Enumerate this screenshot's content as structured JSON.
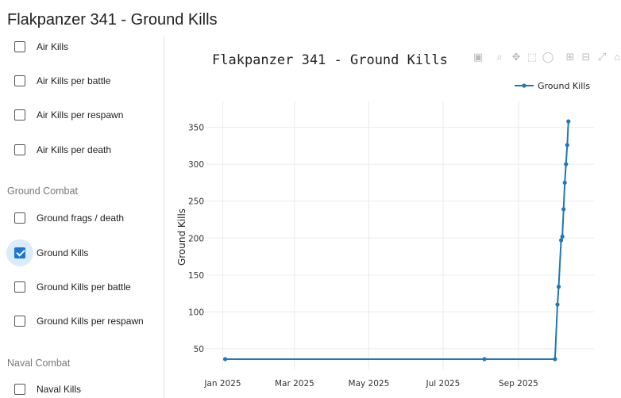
{
  "page": {
    "title": "Flakpanzer 341 - Ground Kills"
  },
  "sidebar": {
    "air_items": [
      {
        "label": "Air Kills",
        "checked": false
      },
      {
        "label": "Air Kills per battle",
        "checked": false
      },
      {
        "label": "Air Kills per respawn",
        "checked": false
      },
      {
        "label": "Air Kills per death",
        "checked": false
      }
    ],
    "ground_section": "Ground Combat",
    "ground_items": [
      {
        "label": "Ground frags / death",
        "checked": false
      },
      {
        "label": "Ground Kills",
        "checked": true
      },
      {
        "label": "Ground Kills per battle",
        "checked": false
      },
      {
        "label": "Ground Kills per respawn",
        "checked": false
      }
    ],
    "naval_section": "Naval Combat",
    "naval_items": [
      {
        "label": "Naval Kills",
        "checked": false
      }
    ]
  },
  "modebar": {
    "icons": [
      "camera-icon",
      "zoom-icon",
      "pan-icon",
      "box-select-icon",
      "lasso-select-icon",
      "zoom-in-icon",
      "zoom-out-icon",
      "autoscale-icon",
      "home-icon"
    ]
  },
  "chart_data": {
    "type": "line",
    "title": "Flakpanzer 341 - Ground Kills",
    "xlabel": "",
    "ylabel": "Ground Kills",
    "x_ticks": [
      "Jan 2025",
      "Mar 2025",
      "May 2025",
      "Jul 2025",
      "Sep 2025"
    ],
    "y_ticks": [
      50,
      100,
      150,
      200,
      250,
      300,
      350
    ],
    "xlim": [
      "2024-12-18",
      "2025-11-02"
    ],
    "ylim": [
      22,
      385
    ],
    "grid": true,
    "legend_position": "top-right",
    "series": [
      {
        "name": "Ground Kills",
        "color": "#1f77b4",
        "points": [
          {
            "x": "2025-01-03",
            "y": 36
          },
          {
            "x": "2025-08-04",
            "y": 36
          },
          {
            "x": "2025-10-01",
            "y": 36
          },
          {
            "x": "2025-10-03",
            "y": 110
          },
          {
            "x": "2025-10-04",
            "y": 134
          },
          {
            "x": "2025-10-06",
            "y": 197
          },
          {
            "x": "2025-10-07",
            "y": 202
          },
          {
            "x": "2025-10-08",
            "y": 239
          },
          {
            "x": "2025-10-09",
            "y": 275
          },
          {
            "x": "2025-10-10",
            "y": 300
          },
          {
            "x": "2025-10-11",
            "y": 326
          },
          {
            "x": "2025-10-12",
            "y": 358
          }
        ]
      }
    ]
  }
}
